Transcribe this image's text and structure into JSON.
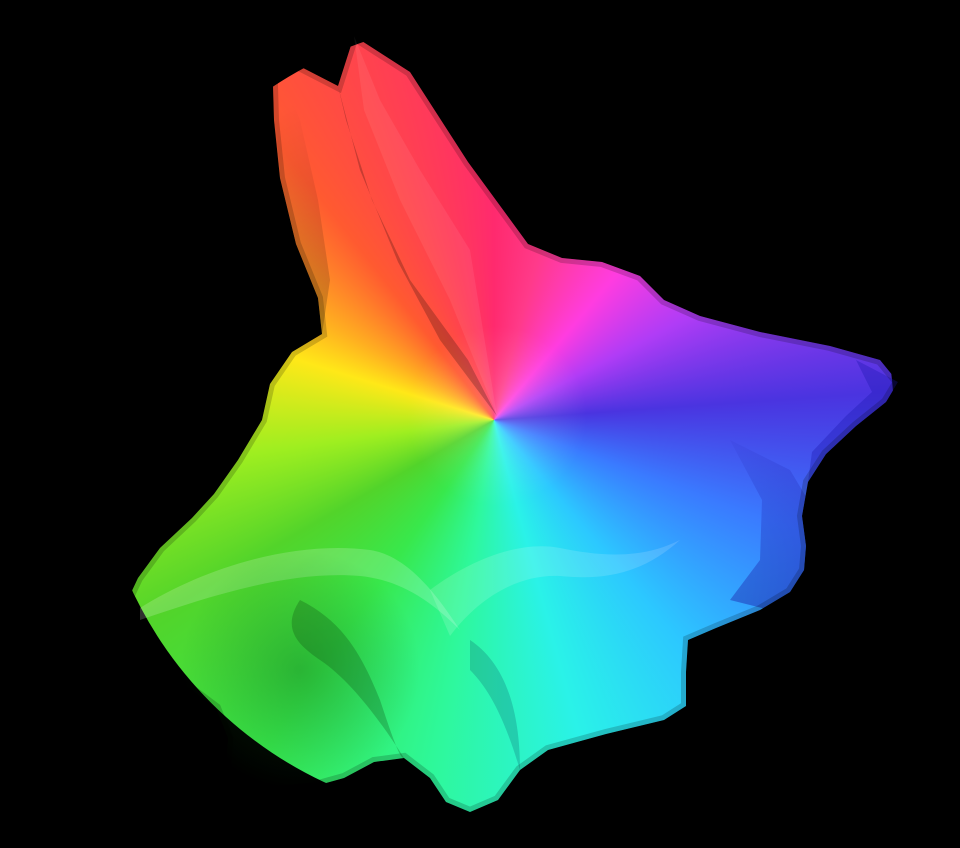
{
  "scene": {
    "subject": "3d-surface",
    "colormap": "hue-by-phase-angle",
    "background_color": "#000000",
    "palette": {
      "red": "#ff2a55",
      "magenta": "#ff3ce0",
      "violet": "#6a3af0",
      "blue": "#3a3ae6",
      "cyan": "#2af2f0",
      "green": "#38e84c",
      "yellow-green": "#9eee20",
      "yellow": "#ffe818",
      "orange": "#ff8a2a"
    }
  }
}
